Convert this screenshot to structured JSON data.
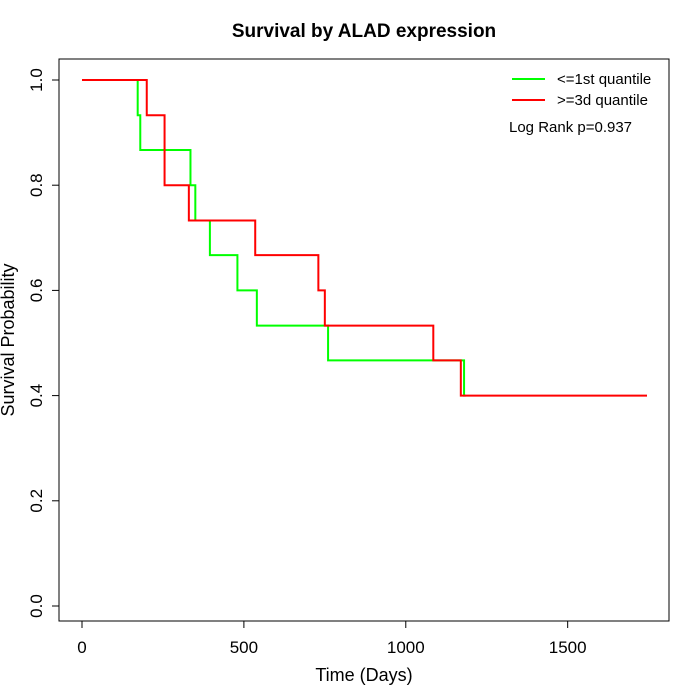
{
  "chart_data": {
    "type": "line",
    "title": "Survival by ALAD expression",
    "xlabel": "Time (Days)",
    "ylabel": "Survival Probability",
    "xlim": [
      0,
      1800
    ],
    "ylim": [
      0,
      1.0
    ],
    "x_ticks": [
      0,
      500,
      1000,
      1500
    ],
    "y_ticks": [
      0.0,
      0.2,
      0.4,
      0.6,
      0.8,
      1.0
    ],
    "x_tick_labels": [
      "0",
      "500",
      "1000",
      "1500"
    ],
    "y_tick_labels": [
      "0.0",
      "0.2",
      "0.4",
      "0.6",
      "0.8",
      "1.0"
    ],
    "grid": false,
    "legend_position": "top-right",
    "annotation": "Log Rank p=0.937",
    "series": [
      {
        "name": "<=1st quantile",
        "color": "#00ff00",
        "step": true,
        "x": [
          0,
          172,
          180,
          335,
          350,
          395,
          480,
          540,
          760,
          1180,
          1185
        ],
        "y": [
          1.0,
          0.933,
          0.867,
          0.8,
          0.733,
          0.667,
          0.6,
          0.533,
          0.467,
          0.4,
          0.4
        ]
      },
      {
        "name": ">=3d quantile",
        "color": "#ff0000",
        "step": true,
        "x": [
          0,
          200,
          255,
          330,
          535,
          730,
          750,
          1085,
          1170,
          1745
        ],
        "y": [
          1.0,
          0.933,
          0.8,
          0.733,
          0.667,
          0.6,
          0.533,
          0.467,
          0.4,
          0.4
        ]
      }
    ]
  }
}
